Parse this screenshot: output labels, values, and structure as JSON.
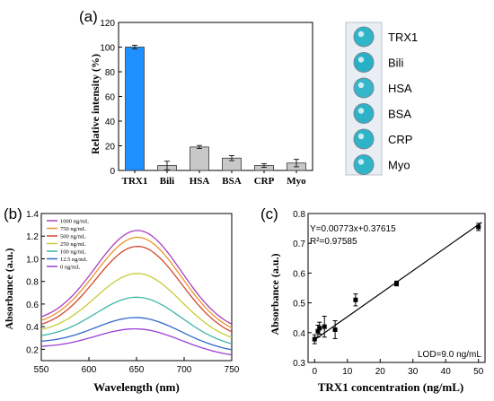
{
  "panel_labels": {
    "a": "(a)",
    "b": "(b)",
    "c": "(c)"
  },
  "chart_data": [
    {
      "panel": "a",
      "type": "bar",
      "categories": [
        "TRX1",
        "Bili",
        "HSA",
        "BSA",
        "CRP",
        "Myo"
      ],
      "values": [
        100,
        4,
        19,
        10,
        4,
        6
      ],
      "errors": [
        1.5,
        3.5,
        1.2,
        2,
        1.5,
        3
      ],
      "colors": [
        "#1e90ff",
        "#c8c8c8",
        "#c8c8c8",
        "#c8c8c8",
        "#c8c8c8",
        "#c8c8c8"
      ],
      "ylabel": "Relative intensity (%)",
      "xlabel": "",
      "ylim": [
        0,
        120
      ],
      "yticks": [
        "0",
        "20",
        "40",
        "60",
        "80",
        "100",
        "120"
      ]
    },
    {
      "panel": "b",
      "type": "line",
      "xlabel": "Wavelength (nm)",
      "ylabel": "Absorbance (a.u.)",
      "xlim": [
        550,
        750
      ],
      "ylim": [
        0.1,
        1.4
      ],
      "xticks": [
        "550",
        "600",
        "650",
        "700",
        "750"
      ],
      "yticks": [
        "0.2",
        "0.4",
        "0.6",
        "0.8",
        "1.0",
        "1.2",
        "1.4"
      ],
      "peak_x": 652,
      "series": [
        {
          "name": "1000 ng/mL",
          "color": "#aa3fc0",
          "peak": 1.25,
          "base": 0.38
        },
        {
          "name": "750 ng/mL",
          "color": "#e9952e",
          "peak": 1.19,
          "base": 0.35
        },
        {
          "name": "500 ng/mL",
          "color": "#d3462f",
          "peak": 1.11,
          "base": 0.32
        },
        {
          "name": "250 ng/mL",
          "color": "#c9cc3a",
          "peak": 0.87,
          "base": 0.29
        },
        {
          "name": "100 ng/mL",
          "color": "#3fb6a8",
          "peak": 0.66,
          "base": 0.25
        },
        {
          "name": "12.5 ng/mL",
          "color": "#2f68c9",
          "peak": 0.48,
          "base": 0.21
        },
        {
          "name": "0 ng/mL",
          "color": "#9b3fd4",
          "peak": 0.38,
          "base": 0.17
        }
      ]
    },
    {
      "panel": "c",
      "type": "scatter",
      "xlabel": "TRX1 concentration (ng/mL)",
      "ylabel": "Absorbance (a.u.)",
      "xlim": [
        -2,
        52
      ],
      "ylim": [
        0.3,
        0.8
      ],
      "xticks": [
        "0",
        "10",
        "20",
        "30",
        "40",
        "50"
      ],
      "yticks": [
        "0.3",
        "0.4",
        "0.5",
        "0.6",
        "0.7",
        "0.8"
      ],
      "x": [
        0,
        1,
        1.5,
        3,
        6.25,
        12.5,
        25,
        50
      ],
      "y": [
        0.378,
        0.405,
        0.415,
        0.42,
        0.41,
        0.51,
        0.565,
        0.755
      ],
      "errors": [
        0.015,
        0.02,
        0.02,
        0.035,
        0.03,
        0.02,
        0.008,
        0.012
      ],
      "fit": {
        "slope": 0.00773,
        "intercept": 0.37615
      },
      "equation": "Y=0.00773x+0.37615",
      "r2": "R²=0.97585",
      "lod": "LOD=9.0 ng/mL"
    }
  ],
  "wells": {
    "labels": [
      "TRX1",
      "Bili",
      "HSA",
      "BSA",
      "CRP",
      "Myo"
    ],
    "colors": [
      "#2fb5c9",
      "#2ab0c6",
      "#35b6ca",
      "#2eb2c8",
      "#2fb3c8",
      "#30b4c9"
    ]
  }
}
